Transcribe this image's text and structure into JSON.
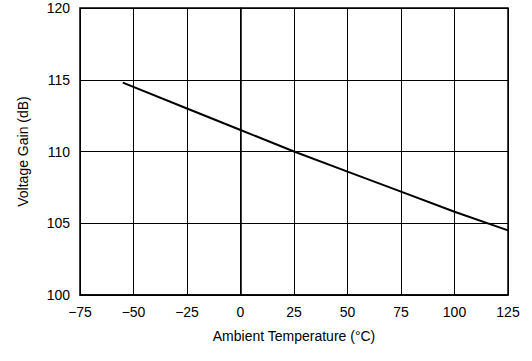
{
  "chart_data": {
    "type": "line",
    "xlabel": "Ambient Temperature (°C)",
    "ylabel": "Voltage Gain (dB)",
    "x": [
      -55,
      -25,
      0,
      25,
      50,
      75,
      100,
      125
    ],
    "values": [
      114.8,
      113.0,
      111.5,
      110.0,
      108.6,
      107.2,
      105.8,
      104.5
    ],
    "color": "#000000",
    "xlim": [
      -75,
      125
    ],
    "xticks": [
      {
        "value": -75,
        "label": "−75"
      },
      {
        "value": -50,
        "label": "−50"
      },
      {
        "value": -25,
        "label": "−25"
      },
      0,
      25,
      50,
      75,
      100,
      125
    ],
    "ylim": [
      100,
      120
    ],
    "yticks": [
      100,
      105,
      110,
      115,
      120
    ],
    "grid": true
  }
}
